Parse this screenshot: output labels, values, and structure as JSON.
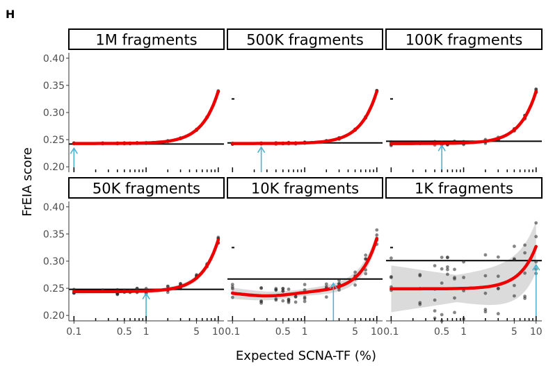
{
  "figure": {
    "panel_letter": "H"
  },
  "chart_data": {
    "type": "scatter",
    "xlabel": "Expected SCNA-TF (%)",
    "ylabel": "FrEIA score",
    "x_scale": "log",
    "xlim": [
      0.085,
      12
    ],
    "ylim": [
      0.19,
      0.41
    ],
    "x_ticks": [
      {
        "value": 0.1,
        "label": "0.1"
      },
      {
        "value": 0.5,
        "label": "0.5"
      },
      {
        "value": 1,
        "label": "1"
      },
      {
        "value": 5,
        "label": "5"
      },
      {
        "value": 10,
        "label": "10"
      }
    ],
    "y_ticks": [
      {
        "value": 0.2,
        "label": "0.20"
      },
      {
        "value": 0.25,
        "label": "0.25"
      },
      {
        "value": 0.3,
        "label": "0.30"
      },
      {
        "value": 0.35,
        "label": "0.35"
      },
      {
        "value": 0.4,
        "label": "0.40"
      }
    ],
    "x_points": [
      0.1,
      0.25,
      0.4,
      0.5,
      0.6,
      0.75,
      1,
      2,
      3,
      5,
      7,
      10
    ],
    "colors": {
      "fit": "#ee0000",
      "band": "#bdbdbd",
      "points": "#222222",
      "arrow": "#4db3d1",
      "hline": "#000000"
    },
    "panels": [
      {
        "title": "1M fragments",
        "baseline": 0.242,
        "fit_start": 0.243,
        "fit_end": 0.339,
        "spread": 0.001,
        "detection_x": 0.1,
        "band": 0.001
      },
      {
        "title": "500K fragments",
        "baseline": 0.244,
        "fit_start": 0.243,
        "fit_end": 0.339,
        "spread": 0.0015,
        "detection_x": 0.25,
        "band": 0.001
      },
      {
        "title": "100K fragments",
        "baseline": 0.247,
        "fit_start": 0.243,
        "fit_end": 0.339,
        "spread": 0.004,
        "detection_x": 0.5,
        "band": 0.002
      },
      {
        "title": "50K fragments",
        "baseline": 0.248,
        "fit_start": 0.244,
        "fit_end": 0.339,
        "spread": 0.006,
        "detection_x": 1,
        "band": 0.003
      },
      {
        "title": "10K fragments",
        "baseline": 0.267,
        "fit_start": 0.244,
        "fit_end": 0.342,
        "spread": 0.018,
        "detection_x": 2.5,
        "band": 0.006,
        "shape": "dip"
      },
      {
        "title": "1K fragments",
        "baseline": 0.301,
        "fit_start": 0.249,
        "fit_end": 0.327,
        "spread": 0.06,
        "detection_x": 10,
        "band": 0.025
      }
    ]
  }
}
